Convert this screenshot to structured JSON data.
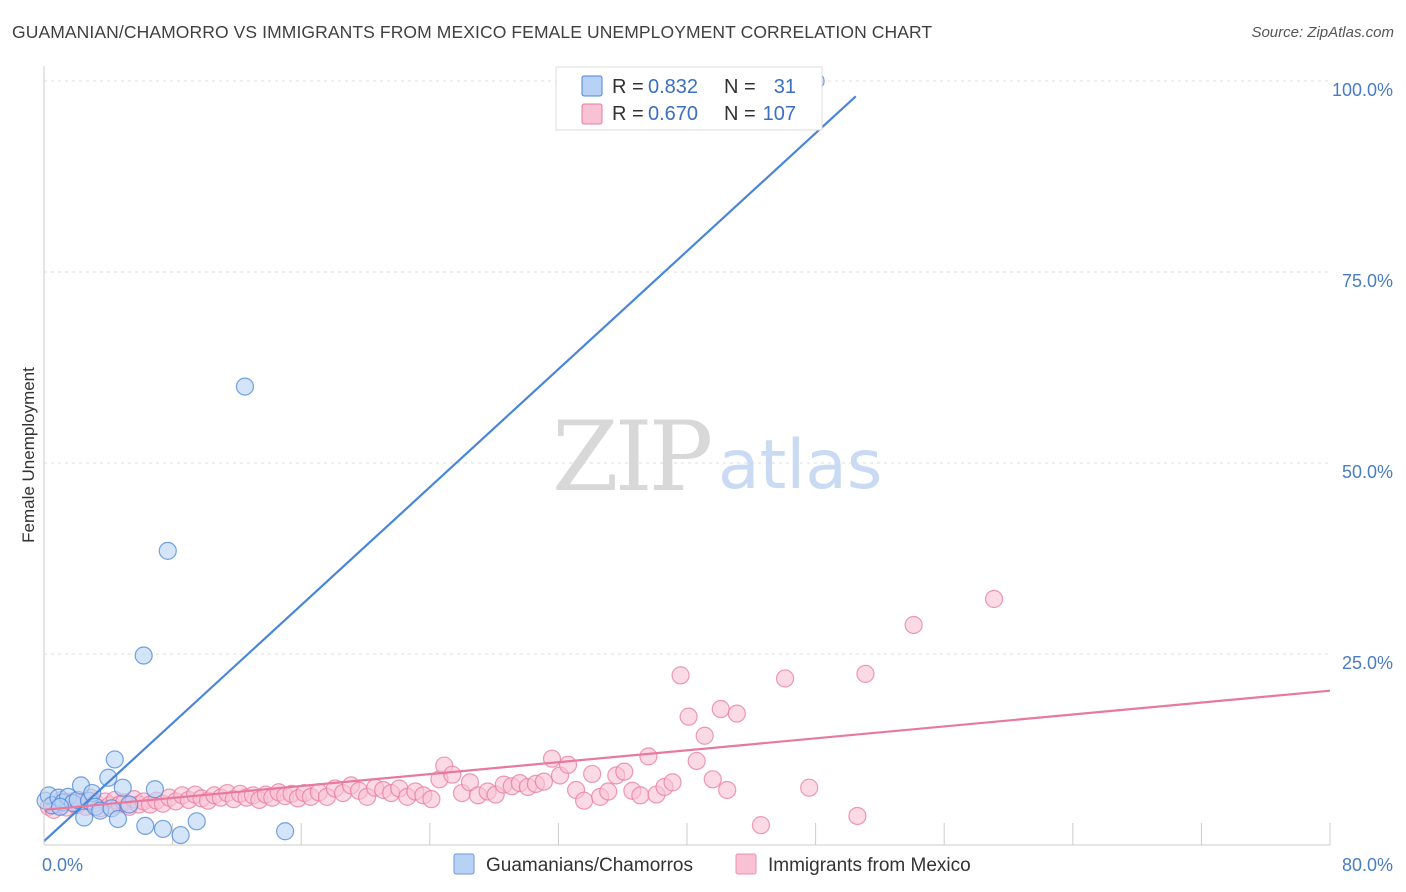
{
  "header": {
    "title": "GUAMANIAN/CHAMORRO VS IMMIGRANTS FROM MEXICO FEMALE UNEMPLOYMENT CORRELATION CHART",
    "source": "Source: ZipAtlas.com"
  },
  "watermark": {
    "zip": "ZIP",
    "atlas": "atlas"
  },
  "legend": {
    "rows": [
      {
        "r_label": "R =",
        "r_value": "0.832",
        "n_label": "N =",
        "n_value": "31",
        "color": "#4a86d8",
        "fill": "#b8d2f5"
      },
      {
        "r_label": "R =",
        "r_value": "0.670",
        "n_label": "N =",
        "n_value": "107",
        "color": "#e8799e",
        "fill": "#f8c2d4"
      }
    ]
  },
  "bottom_legend": [
    {
      "label": "Guamanians/Chamorros",
      "fill": "#b8d2f5",
      "stroke": "#6a9ad8"
    },
    {
      "label": "Immigrants from Mexico",
      "fill": "#f8c2d4",
      "stroke": "#e890ae"
    }
  ],
  "chart_data": {
    "type": "scatter",
    "title": "GUAMANIAN/CHAMORRO VS IMMIGRANTS FROM MEXICO FEMALE UNEMPLOYMENT CORRELATION CHART",
    "xlabel": "",
    "ylabel": "Female Unemployment",
    "xlim": [
      0,
      80
    ],
    "ylim": [
      0,
      100
    ],
    "x_tick_labels": [
      "0.0%",
      "80.0%"
    ],
    "y_ticks": [
      {
        "value": 25,
        "label": "25.0%"
      },
      {
        "value": 50,
        "label": "50.0%"
      },
      {
        "value": 75,
        "label": "75.0%"
      },
      {
        "value": 100,
        "label": "100.0%"
      }
    ],
    "series": [
      {
        "name": "Guamanians/Chamorros",
        "color": "#4a86d8",
        "fill": "#b8d2f5",
        "trend": {
          "x": [
            0,
            50.5
          ],
          "y": [
            0.5,
            98
          ]
        },
        "points": [
          [
            0.1,
            5.8
          ],
          [
            0.3,
            6.5
          ],
          [
            0.5,
            5.2
          ],
          [
            0.9,
            6.2
          ],
          [
            1.2,
            5.6
          ],
          [
            1.5,
            6.3
          ],
          [
            1.8,
            5.5
          ],
          [
            2.1,
            5.9
          ],
          [
            2.3,
            7.8
          ],
          [
            2.5,
            3.6
          ],
          [
            2.8,
            5.8
          ],
          [
            3.0,
            6.8
          ],
          [
            3.2,
            5.0
          ],
          [
            3.5,
            4.5
          ],
          [
            4.0,
            8.8
          ],
          [
            4.2,
            4.8
          ],
          [
            4.4,
            11.2
          ],
          [
            4.6,
            3.4
          ],
          [
            4.9,
            7.5
          ],
          [
            5.3,
            5.3
          ],
          [
            6.2,
            24.8
          ],
          [
            6.3,
            2.5
          ],
          [
            6.9,
            7.3
          ],
          [
            7.4,
            2.1
          ],
          [
            7.7,
            38.5
          ],
          [
            8.5,
            1.3
          ],
          [
            9.5,
            3.1
          ],
          [
            12.5,
            60.0
          ],
          [
            15.0,
            1.8
          ],
          [
            48.0,
            100.0
          ],
          [
            1.0,
            5.0
          ]
        ]
      },
      {
        "name": "Immigrants from Mexico",
        "color": "#e8799e",
        "fill": "#f8c2d4",
        "trend": {
          "x": [
            0,
            80
          ],
          "y": [
            4.6,
            20.2
          ]
        },
        "points": [
          [
            0.3,
            5.0
          ],
          [
            0.6,
            4.6
          ],
          [
            0.9,
            5.3
          ],
          [
            1.1,
            5.9
          ],
          [
            1.4,
            4.9
          ],
          [
            1.7,
            5.7
          ],
          [
            2.0,
            5.2
          ],
          [
            2.3,
            5.5
          ],
          [
            2.6,
            5.0
          ],
          [
            2.9,
            6.2
          ],
          [
            3.2,
            5.5
          ],
          [
            3.5,
            4.8
          ],
          [
            3.8,
            5.7
          ],
          [
            4.1,
            5.2
          ],
          [
            4.4,
            5.9
          ],
          [
            4.7,
            5.3
          ],
          [
            5.0,
            5.6
          ],
          [
            5.3,
            5.0
          ],
          [
            5.6,
            6.0
          ],
          [
            5.9,
            5.3
          ],
          [
            6.2,
            5.7
          ],
          [
            6.6,
            5.3
          ],
          [
            7.0,
            5.8
          ],
          [
            7.4,
            5.4
          ],
          [
            7.8,
            6.2
          ],
          [
            8.2,
            5.7
          ],
          [
            8.6,
            6.5
          ],
          [
            9.0,
            5.9
          ],
          [
            9.4,
            6.6
          ],
          [
            9.8,
            6.1
          ],
          [
            10.2,
            5.8
          ],
          [
            10.6,
            6.5
          ],
          [
            11.0,
            6.2
          ],
          [
            11.4,
            6.8
          ],
          [
            11.8,
            6.0
          ],
          [
            12.2,
            6.7
          ],
          [
            12.6,
            6.2
          ],
          [
            13.0,
            6.5
          ],
          [
            13.4,
            5.9
          ],
          [
            13.8,
            6.6
          ],
          [
            14.2,
            6.2
          ],
          [
            14.6,
            6.9
          ],
          [
            15.0,
            6.4
          ],
          [
            15.4,
            6.7
          ],
          [
            15.8,
            6.1
          ],
          [
            16.2,
            6.8
          ],
          [
            16.6,
            6.3
          ],
          [
            17.1,
            6.9
          ],
          [
            17.6,
            6.3
          ],
          [
            18.1,
            7.4
          ],
          [
            18.6,
            6.8
          ],
          [
            19.1,
            7.8
          ],
          [
            19.6,
            7.1
          ],
          [
            20.1,
            6.3
          ],
          [
            20.6,
            7.5
          ],
          [
            21.1,
            7.2
          ],
          [
            21.6,
            6.8
          ],
          [
            22.1,
            7.4
          ],
          [
            22.6,
            6.3
          ],
          [
            23.1,
            7.0
          ],
          [
            23.6,
            6.5
          ],
          [
            24.1,
            6.0
          ],
          [
            24.6,
            8.6
          ],
          [
            24.9,
            10.4
          ],
          [
            25.4,
            9.2
          ],
          [
            26.0,
            6.8
          ],
          [
            26.5,
            8.2
          ],
          [
            27.0,
            6.5
          ],
          [
            27.6,
            7.0
          ],
          [
            28.1,
            6.6
          ],
          [
            28.6,
            7.9
          ],
          [
            29.1,
            7.7
          ],
          [
            29.6,
            8.1
          ],
          [
            30.1,
            7.6
          ],
          [
            30.6,
            8.0
          ],
          [
            31.1,
            8.3
          ],
          [
            31.6,
            11.3
          ],
          [
            32.1,
            9.1
          ],
          [
            32.6,
            10.5
          ],
          [
            33.1,
            7.2
          ],
          [
            33.6,
            5.8
          ],
          [
            34.1,
            9.3
          ],
          [
            34.6,
            6.3
          ],
          [
            35.1,
            7.0
          ],
          [
            35.6,
            9.1
          ],
          [
            36.1,
            9.6
          ],
          [
            36.6,
            7.1
          ],
          [
            37.1,
            6.5
          ],
          [
            37.6,
            11.6
          ],
          [
            38.1,
            6.6
          ],
          [
            38.6,
            7.6
          ],
          [
            39.1,
            8.2
          ],
          [
            39.6,
            22.2
          ],
          [
            40.1,
            16.8
          ],
          [
            40.6,
            11.0
          ],
          [
            41.1,
            14.3
          ],
          [
            41.6,
            8.6
          ],
          [
            42.1,
            17.8
          ],
          [
            42.5,
            7.2
          ],
          [
            43.1,
            17.2
          ],
          [
            44.6,
            2.6
          ],
          [
            46.1,
            21.8
          ],
          [
            47.6,
            7.5
          ],
          [
            50.6,
            3.8
          ],
          [
            51.1,
            22.4
          ],
          [
            54.1,
            28.8
          ],
          [
            59.1,
            32.2
          ]
        ]
      }
    ]
  }
}
